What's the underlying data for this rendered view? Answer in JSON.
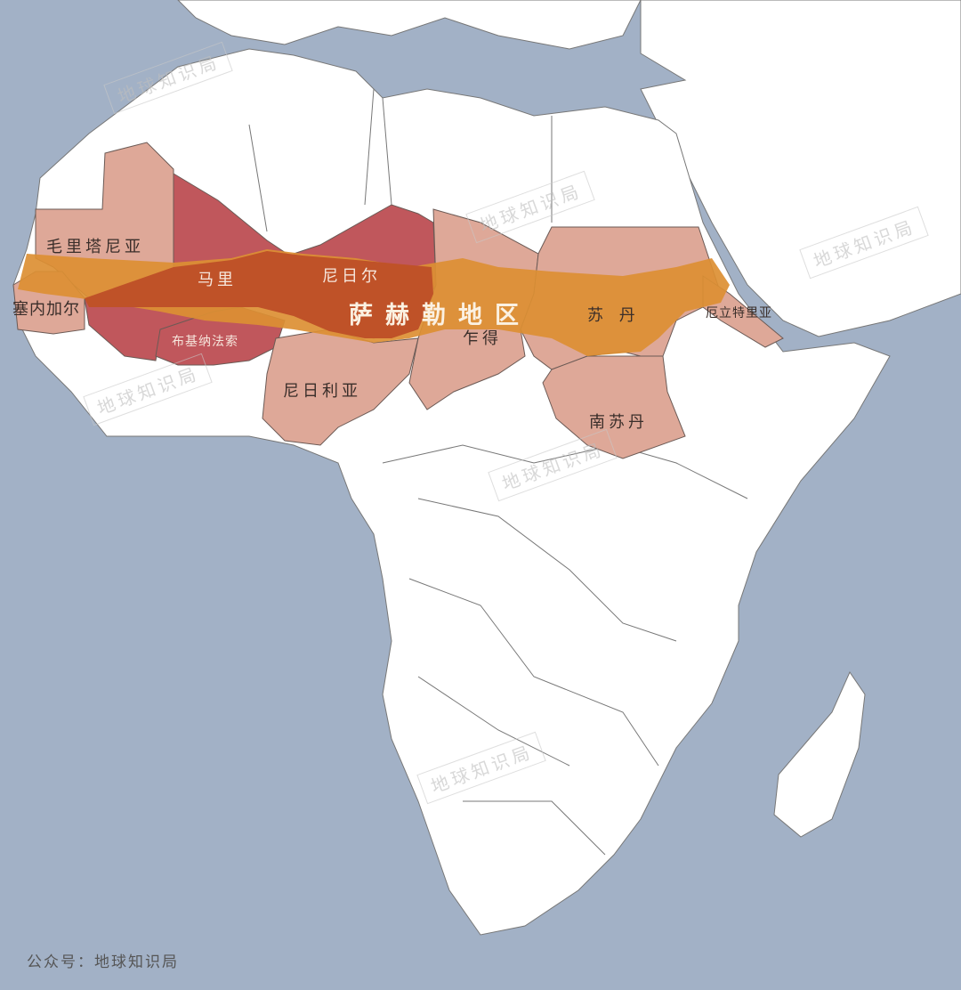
{
  "map": {
    "region_label": "萨赫勒地区",
    "countries": {
      "mauritania": "毛里塔尼亚",
      "mali": "马里",
      "niger": "尼日尔",
      "senegal": "塞内加尔",
      "burkina_faso": "布基纳法索",
      "nigeria": "尼日利亚",
      "chad": "乍得",
      "sudan": "苏 丹",
      "eritrea": "厄立特里亚",
      "south_sudan": "南苏丹"
    },
    "colors": {
      "sea": "#a2b1c6",
      "land": "#ffffff",
      "sahel_country_light": "#dea898",
      "sahel_country_core": "#c0575c",
      "sahel_band": "#dc8f33",
      "sahel_band_core": "#bf5228"
    }
  },
  "watermark": "地球知识局",
  "footer": "公众号：地球知识局"
}
